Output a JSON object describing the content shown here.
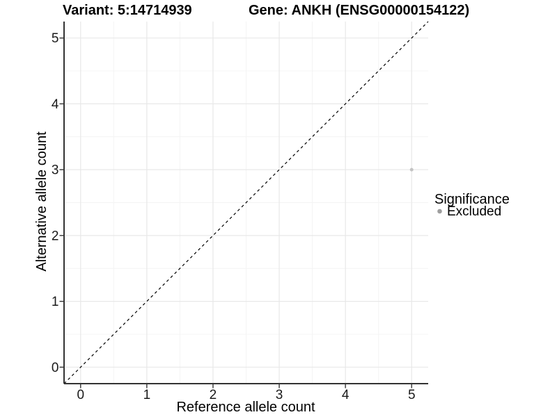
{
  "chart_data": {
    "type": "scatter",
    "title_left": "Variant: 5:14714939",
    "title_right": "Gene: ANKH (ENSG00000154122)",
    "xlabel": "Reference allele count",
    "ylabel": "Alternative allele count",
    "xlim": [
      -0.25,
      5.25
    ],
    "ylim": [
      -0.25,
      5.25
    ],
    "x_ticks": [
      0,
      1,
      2,
      3,
      4,
      5
    ],
    "y_ticks": [
      0,
      1,
      2,
      3,
      4,
      5
    ],
    "x_minor_ticks": [
      0.5,
      1.5,
      2.5,
      3.5,
      4.5
    ],
    "y_minor_ticks": [
      0.5,
      1.5,
      2.5,
      3.5,
      4.5
    ],
    "grid": "major+minor",
    "reference_line": {
      "type": "identity",
      "style": "dashed",
      "x1": -0.25,
      "y1": -0.25,
      "x2": 5.25,
      "y2": 5.25
    },
    "series": [
      {
        "name": "Excluded",
        "color": "#c3c3c3",
        "points": [
          {
            "x": 5,
            "y": 3
          }
        ]
      }
    ],
    "legend": {
      "position": "right",
      "title": "Significance",
      "items": [
        {
          "label": "Excluded",
          "swatch_color": "#9e9e9e"
        }
      ]
    }
  },
  "colors": {
    "background": "#ffffff",
    "grid_major": "#e8e8e8",
    "grid_minor": "#f4f4f4",
    "axis_line": "#333333",
    "tick_mark": "#333333",
    "tick_label": "#1a1a1a",
    "title_text": "#000000",
    "identity_line": "#000000",
    "point": "#c3c3c3",
    "legend_point": "#9e9e9e"
  }
}
